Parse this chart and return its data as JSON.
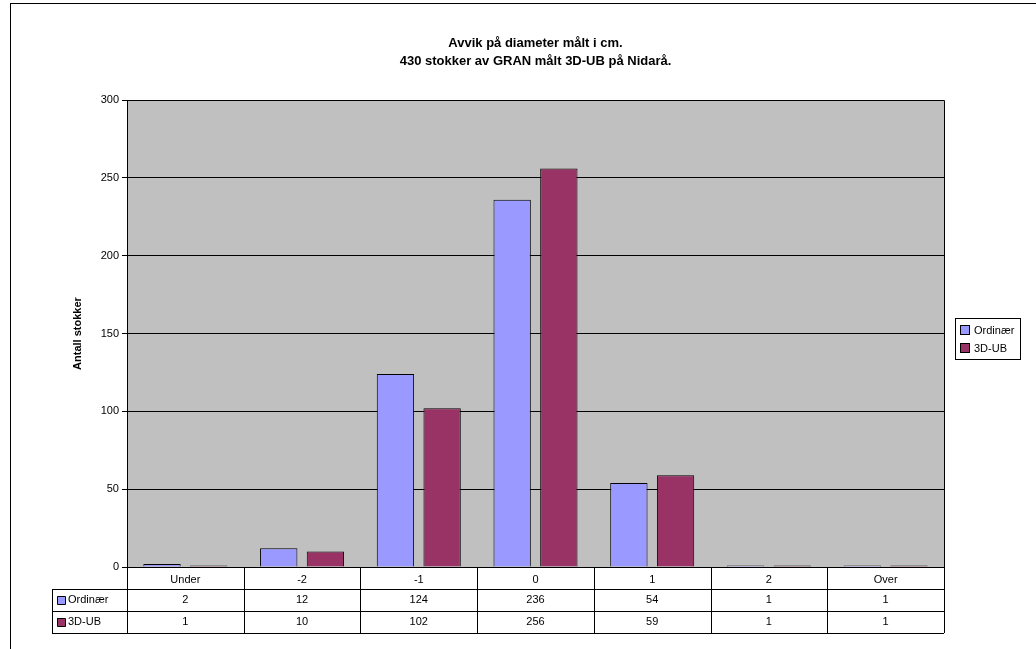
{
  "chart_data": {
    "type": "bar",
    "title": "Avvik på diameter målt i cm.\n430 stokker av GRAN målt 3D-UB på Nidarå.",
    "ylabel": "Antall stokker",
    "categories": [
      "Under",
      "-2",
      "-1",
      "0",
      "1",
      "2",
      "Over"
    ],
    "series": [
      {
        "name": "Ordinær",
        "color": "#9999ff",
        "values": [
          2,
          12,
          124,
          236,
          54,
          1,
          1
        ]
      },
      {
        "name": "3D-UB",
        "color": "#993366",
        "values": [
          1,
          10,
          102,
          256,
          59,
          1,
          1
        ]
      }
    ],
    "ylim": [
      0,
      300
    ],
    "yticks": [
      0,
      50,
      100,
      150,
      200,
      250,
      300
    ],
    "grid": "y",
    "legend": "right",
    "data_labels": true
  }
}
